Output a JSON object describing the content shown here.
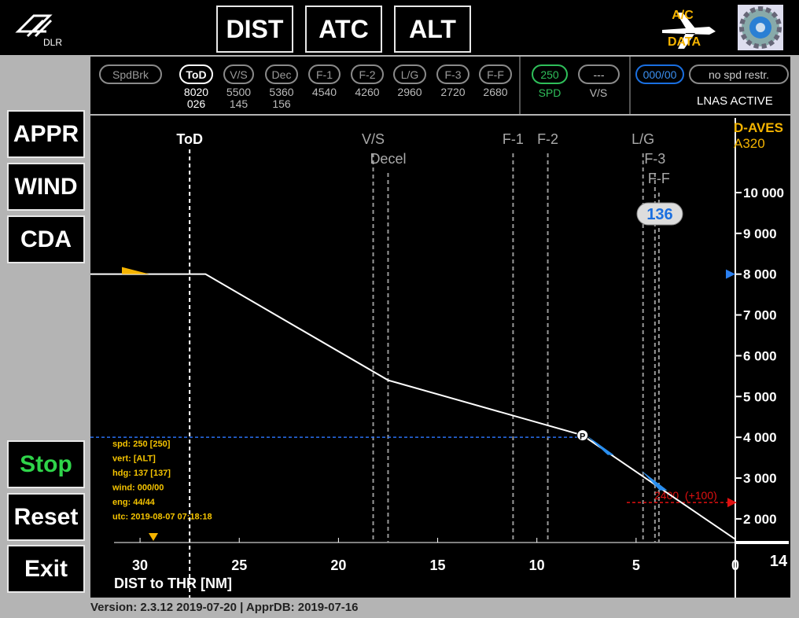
{
  "header": {
    "logo": "DLR",
    "buttons": [
      "DIST",
      "ATC",
      "ALT"
    ],
    "ac_data": [
      "A/C",
      "DATA"
    ]
  },
  "status": {
    "pills": [
      {
        "label": "SpdBrk"
      },
      {
        "label": "ToD",
        "lines": [
          "8020",
          "026"
        ]
      },
      {
        "label": "V/S",
        "lines": [
          "5500",
          "145"
        ]
      },
      {
        "label": "Dec",
        "lines": [
          "5360",
          "156"
        ]
      },
      {
        "label": "F-1",
        "lines": [
          "4540"
        ]
      },
      {
        "label": "F-2",
        "lines": [
          "4260"
        ]
      },
      {
        "label": "L/G",
        "lines": [
          "2960"
        ]
      },
      {
        "label": "F-3",
        "lines": [
          "2720"
        ]
      },
      {
        "label": "F-F",
        "lines": [
          "2680"
        ]
      }
    ],
    "speed": {
      "label": "250",
      "caption": "SPD"
    },
    "vs": {
      "label": "---",
      "caption": "V/S"
    },
    "wind": "000/00",
    "restriction": "no spd restr.",
    "mode": "LNAS ACTIVE"
  },
  "side_buttons": [
    "APPR",
    "WIND",
    "CDA"
  ],
  "control_buttons": [
    "Stop",
    "Reset",
    "Exit"
  ],
  "footer": "Version: 2.3.12 2019-07-20 | ApprDB: 2019-07-16",
  "chart_data": {
    "type": "line",
    "x_label": "DIST to THR [NM]",
    "xlim": [
      32.5,
      0
    ],
    "ylim": [
      1420,
      11830
    ],
    "xticks": [
      30,
      25,
      20,
      15,
      10,
      5,
      0
    ],
    "yticks": [
      {
        "value": 2000,
        "label": "2 000"
      },
      {
        "value": 3000,
        "label": "3 000"
      },
      {
        "value": 4000,
        "label": "4 000"
      },
      {
        "value": 5000,
        "label": "5 000"
      },
      {
        "value": 6000,
        "label": "6 000"
      },
      {
        "value": 7000,
        "label": "7 000"
      },
      {
        "value": 8000,
        "label": "8 000"
      },
      {
        "value": 9000,
        "label": "9 000"
      },
      {
        "value": 10000,
        "label": "10 000"
      }
    ],
    "series": [
      {
        "color": "#ffffff",
        "x": [
          32.5,
          26.7,
          17.5,
          7.7,
          0
        ],
        "values": [
          8000,
          8000,
          5400,
          4050,
          1500
        ]
      }
    ],
    "markers": [
      {
        "label": "ToD",
        "x": 27.5
      },
      {
        "label": "V/S",
        "x": 18.25
      },
      {
        "label": "Decel",
        "x": 17.5
      },
      {
        "label": "F-1",
        "x": 11.2
      },
      {
        "label": "F-2",
        "x": 9.45
      },
      {
        "label": "L/G",
        "x": 4.65
      },
      {
        "label": "F-3",
        "x": 4.05
      },
      {
        "label": "F-F",
        "x": 3.85
      }
    ],
    "target_altitude": 4000,
    "selected_altitude": 8000,
    "constraint": {
      "value": 2400,
      "label": "2400  (+100)"
    },
    "speed_bubble": "136",
    "aircraft": [
      "D-AVES",
      "A320"
    ],
    "range": "14",
    "info": [
      "spd: 250 [250]",
      "vert: [ALT]",
      "hdg: 137 [137]",
      "wind: 000/00",
      "eng: 44/44",
      "utc: 2019-08-07 07:18:18"
    ]
  }
}
